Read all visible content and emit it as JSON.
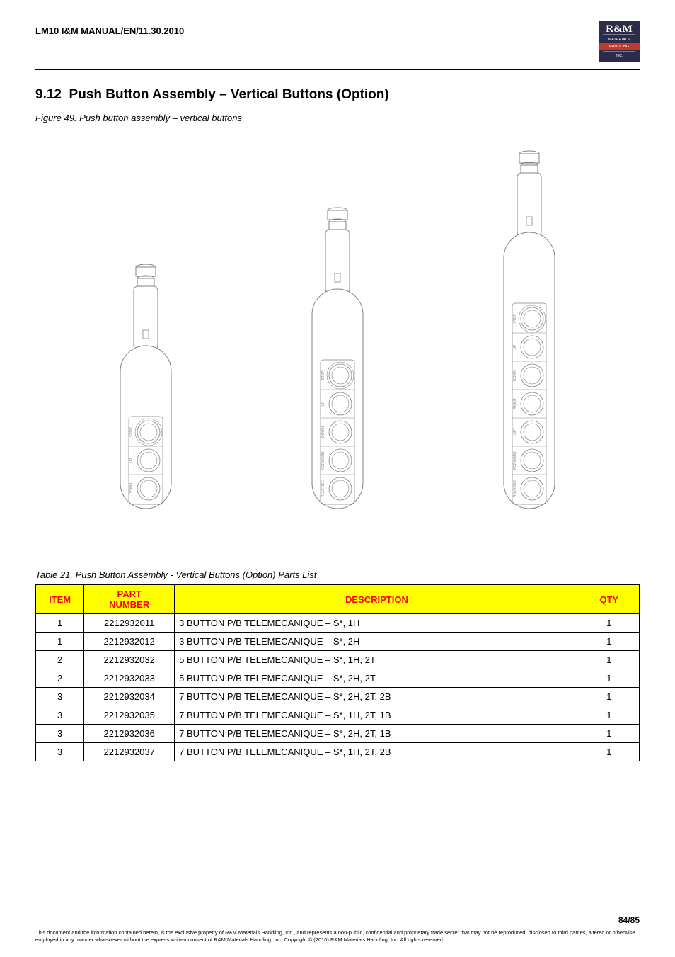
{
  "header": {
    "doc_id": "LM10 I&M MANUAL/EN/11.30.2010",
    "logo": {
      "top_text": "R&M",
      "line1": "MATERIALS",
      "line2": "HANDLING",
      "line3": "INC.",
      "bg_color": "#2b2b4a",
      "accent_color": "#c0392b",
      "text_color": "#ffffff"
    }
  },
  "section": {
    "number": "9.12",
    "title": "Push Button Assembly – Vertical Buttons (Option)"
  },
  "figure_caption": "Figure 49. Push button assembly – vertical buttons",
  "pendants": [
    {
      "buttons": 3,
      "body_height": 230,
      "body_width": 72,
      "labels": [
        "STOP",
        "UP",
        "DOWN"
      ]
    },
    {
      "buttons": 5,
      "body_height": 310,
      "body_width": 72,
      "labels": [
        "STOP",
        "UP",
        "DOWN",
        "FORWARD",
        "REVERSE"
      ]
    },
    {
      "buttons": 7,
      "body_height": 390,
      "body_width": 72,
      "labels": [
        "STOP",
        "UP",
        "DOWN",
        "RIGHT",
        "LEFT",
        "FORWARD",
        "REVERSE"
      ]
    }
  ],
  "pendant_style": {
    "stroke": "#808080",
    "stroke_width": 1,
    "fill": "#ffffff",
    "body_radius": 36,
    "cap_width": 28,
    "cap_height": 18,
    "handle_width": 34,
    "handle_height": 90,
    "button_radius": 16,
    "button_gap": 40,
    "label_font_size": 5
  },
  "table_caption": "Table 21. Push Button Assembly - Vertical Buttons (Option) Parts List",
  "table": {
    "header_bg": "#ffff00",
    "header_color": "#ff0000",
    "columns": [
      {
        "key": "item",
        "label": "ITEM",
        "width": "8%"
      },
      {
        "key": "part",
        "label": "PART NUMBER",
        "width": "15%"
      },
      {
        "key": "desc",
        "label": "DESCRIPTION",
        "width": "67%"
      },
      {
        "key": "qty",
        "label": "QTY",
        "width": "10%"
      }
    ],
    "rows": [
      {
        "item": "1",
        "part": "2212932011",
        "desc": "3 BUTTON P/B TELEMECANIQUE – S*, 1H",
        "qty": "1"
      },
      {
        "item": "1",
        "part": "2212932012",
        "desc": "3 BUTTON P/B TELEMECANIQUE – S*, 2H",
        "qty": "1"
      },
      {
        "item": "2",
        "part": "2212932032",
        "desc": "5 BUTTON P/B TELEMECANIQUE – S*, 1H, 2T",
        "qty": "1"
      },
      {
        "item": "2",
        "part": "2212932033",
        "desc": "5 BUTTON P/B TELEMECANIQUE – S*, 2H, 2T",
        "qty": "1"
      },
      {
        "item": "3",
        "part": "2212932034",
        "desc": "7 BUTTON P/B TELEMECANIQUE – S*, 2H, 2T, 2B",
        "qty": "1"
      },
      {
        "item": "3",
        "part": "2212932035",
        "desc": "7 BUTTON P/B TELEMECANIQUE – S*, 1H, 2T, 1B",
        "qty": "1"
      },
      {
        "item": "3",
        "part": "2212932036",
        "desc": "7 BUTTON P/B TELEMECANIQUE – S*, 2H, 2T, 1B",
        "qty": "1"
      },
      {
        "item": "3",
        "part": "2212932037",
        "desc": "7 BUTTON P/B TELEMECANIQUE – S*, 1H, 2T, 2B",
        "qty": "1"
      }
    ]
  },
  "footer": {
    "page_num": "84/85",
    "disclaimer": "This document and the information contained herein, is the exclusive property of R&M Materials Handling, Inc., and represents a non-public, confidential and proprietary trade secret that may not be reproduced, disclosed to third parties, altered or otherwise employed in any manner whatsoever without the express written consent of R&M Materials Handling, Inc. Copyright © (2010) R&M Materials Handling, Inc.  All rights reserved."
  }
}
